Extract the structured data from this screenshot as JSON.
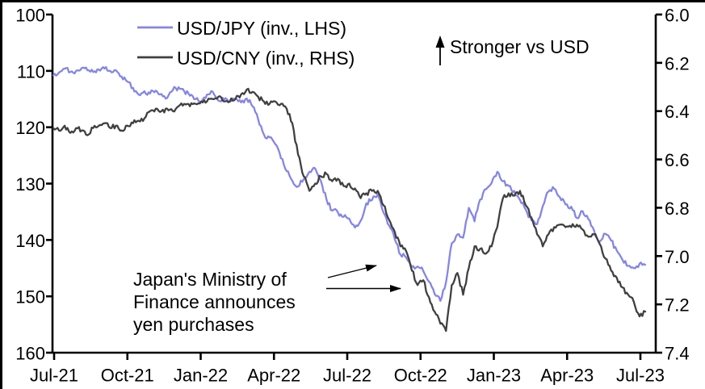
{
  "chart_data": {
    "type": "line",
    "title": "",
    "x_axis": {
      "tick_labels": [
        "Jul-21",
        "Oct-21",
        "Jan-22",
        "Apr-22",
        "Jul-22",
        "Oct-22",
        "Jan-23",
        "Apr-23",
        "Jul-23"
      ]
    },
    "left_axis": {
      "min": 100,
      "max": 160,
      "direction": "min-at-top (inverted display)",
      "tick_labels": [
        "100",
        "110",
        "120",
        "130",
        "140",
        "150",
        "160"
      ]
    },
    "right_axis": {
      "min": 6.0,
      "max": 7.4,
      "direction": "min-at-top (inverted display)",
      "tick_labels": [
        "6.0",
        "6.2",
        "6.4",
        "6.6",
        "6.8",
        "7.0",
        "7.2",
        "7.4"
      ]
    },
    "grid": "off",
    "legend_position": "top-left inside plot",
    "series": [
      {
        "name": "USD/JPY (inv., LHS)",
        "axis": "left",
        "color": "#8585e6",
        "start": "Jul-21",
        "end": "Jul-23",
        "frequency": "weekly (approx.)",
        "values": [
          110.8,
          110.3,
          109.6,
          110.2,
          110.0,
          109.5,
          109.9,
          110.2,
          109.8,
          109.6,
          110.0,
          109.9,
          111.0,
          111.9,
          113.0,
          114.2,
          113.6,
          114.0,
          113.5,
          114.1,
          114.8,
          113.4,
          112.9,
          113.6,
          114.4,
          115.0,
          115.5,
          114.2,
          113.7,
          115.3,
          115.1,
          115.5,
          114.9,
          115.6,
          114.9,
          116.3,
          118.6,
          121.3,
          121.8,
          123.0,
          125.5,
          127.8,
          129.5,
          130.5,
          129.2,
          127.9,
          127.3,
          129.5,
          132.8,
          134.8,
          135.1,
          135.9,
          136.2,
          137.8,
          136.6,
          133.5,
          132.9,
          131.9,
          135.1,
          137.4,
          139.9,
          142.6,
          143.1,
          144.8,
          144.7,
          145.5,
          147.4,
          149.6,
          150.8,
          147.5,
          140.6,
          139.0,
          139.6,
          134.3,
          136.7,
          132.8,
          131.0,
          129.9,
          127.9,
          129.6,
          130.4,
          131.3,
          132.9,
          134.6,
          136.5,
          137.2,
          134.0,
          131.4,
          130.9,
          132.4,
          133.7,
          134.1,
          136.1,
          134.9,
          136.3,
          138.3,
          140.3,
          138.9,
          140.1,
          141.9,
          143.5,
          144.6,
          145.0,
          144.2,
          144.4
        ]
      },
      {
        "name": "USD/CNY (inv., RHS)",
        "axis": "right",
        "color": "#404040",
        "start": "Jul-21",
        "end": "Jul-23",
        "frequency": "weekly (approx.)",
        "values": [
          6.47,
          6.48,
          6.46,
          6.49,
          6.47,
          6.48,
          6.5,
          6.47,
          6.46,
          6.45,
          6.47,
          6.46,
          6.48,
          6.46,
          6.45,
          6.44,
          6.43,
          6.4,
          6.39,
          6.4,
          6.39,
          6.4,
          6.38,
          6.37,
          6.38,
          6.37,
          6.36,
          6.36,
          6.35,
          6.34,
          6.36,
          6.36,
          6.35,
          6.33,
          6.31,
          6.32,
          6.34,
          6.36,
          6.37,
          6.36,
          6.37,
          6.39,
          6.45,
          6.58,
          6.67,
          6.73,
          6.7,
          6.67,
          6.66,
          6.69,
          6.68,
          6.71,
          6.7,
          6.72,
          6.76,
          6.74,
          6.73,
          6.73,
          6.79,
          6.85,
          6.9,
          6.96,
          6.98,
          7.06,
          7.12,
          7.1,
          7.17,
          7.23,
          7.28,
          7.31,
          7.12,
          7.07,
          7.16,
          7.05,
          6.96,
          6.97,
          6.99,
          6.96,
          6.88,
          6.76,
          6.74,
          6.75,
          6.73,
          6.79,
          6.84,
          6.91,
          6.96,
          6.91,
          6.88,
          6.87,
          6.88,
          6.88,
          6.87,
          6.89,
          6.92,
          6.91,
          6.95,
          7.01,
          7.06,
          7.09,
          7.13,
          7.16,
          7.19,
          7.25,
          7.23
        ]
      }
    ],
    "annotations": {
      "stronger": {
        "text": "Stronger vs USD",
        "arrow": "up"
      },
      "mof": {
        "lines": [
          "Japan's Ministry of",
          "Finance announces",
          "yen purchases"
        ],
        "arrows": "two arrows pointing right toward the Sep/Oct-22 decline of both lines"
      }
    }
  }
}
